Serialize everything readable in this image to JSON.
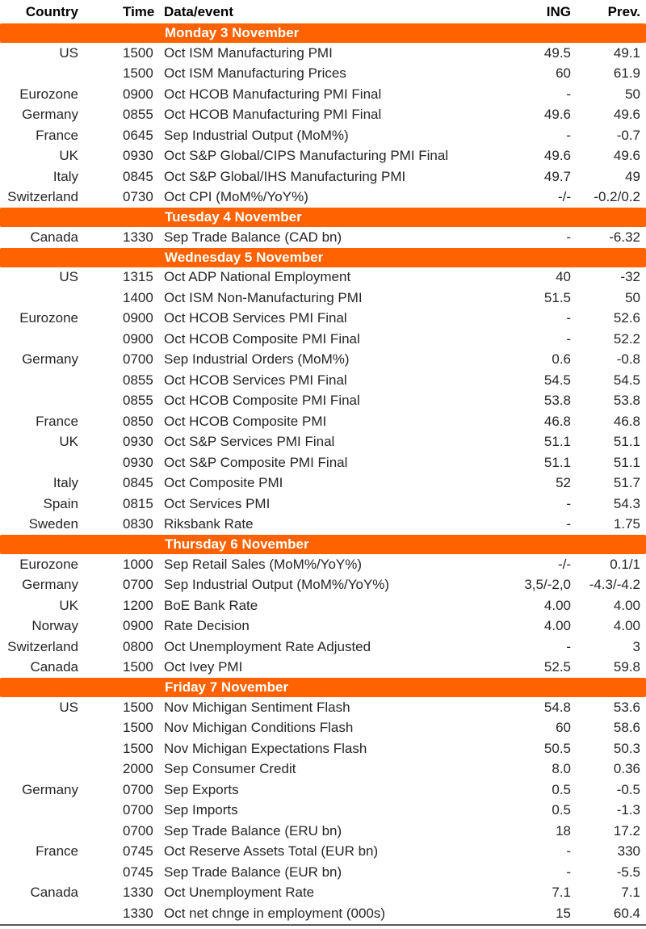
{
  "colors": {
    "band_orange": "#FF6200",
    "band_text": "#ffffff",
    "body_text": "#262626",
    "bottom_rule": "#595959"
  },
  "table": {
    "headers": {
      "country": "Country",
      "time": "Time",
      "event": "Data/event",
      "ing": "ING",
      "prev": "Prev."
    },
    "sections": [
      {
        "day": "Monday 3 November",
        "rows": [
          {
            "country": "US",
            "time": "1500",
            "event": "Oct ISM Manufacturing PMI",
            "ing": "49.5",
            "prev": "49.1"
          },
          {
            "country": "",
            "time": "1500",
            "event": "Oct ISM Manufacturing Prices",
            "ing": "60",
            "prev": "61.9"
          },
          {
            "country": "Eurozone",
            "time": "0900",
            "event": "Oct HCOB Manufacturing PMI Final",
            "ing": "-",
            "prev": "50"
          },
          {
            "country": "Germany",
            "time": "0855",
            "event": "Oct HCOB Manufacturing PMI Final",
            "ing": "49.6",
            "prev": "49.6"
          },
          {
            "country": "France",
            "time": "0645",
            "event": "Sep Industrial Output (MoM%)",
            "ing": "-",
            "prev": "-0.7"
          },
          {
            "country": "UK",
            "time": "0930",
            "event": "Oct S&P Global/CIPS Manufacturing PMI Final",
            "ing": "49.6",
            "prev": "49.6"
          },
          {
            "country": "Italy",
            "time": "0845",
            "event": "Oct S&P Global/IHS Manufacturing PMI",
            "ing": "49.7",
            "prev": "49"
          },
          {
            "country": "Switzerland",
            "time": "0730",
            "event": "Oct CPI (MoM%/YoY%)",
            "ing": "-/-",
            "prev": "-0.2/0.2"
          }
        ]
      },
      {
        "day": "Tuesday 4 November",
        "rows": [
          {
            "country": "Canada",
            "time": "1330",
            "event": "Sep Trade Balance (CAD bn)",
            "ing": "-",
            "prev": "-6.32"
          }
        ]
      },
      {
        "day": "Wednesday 5 November",
        "rows": [
          {
            "country": "US",
            "time": "1315",
            "event": "Oct ADP National Employment",
            "ing": "40",
            "prev": "-32"
          },
          {
            "country": "",
            "time": "1400",
            "event": "Oct ISM Non-Manufacturing PMI",
            "ing": "51.5",
            "prev": "50"
          },
          {
            "country": "Eurozone",
            "time": "0900",
            "event": "Oct HCOB Services PMI Final",
            "ing": "-",
            "prev": "52.6"
          },
          {
            "country": "",
            "time": "0900",
            "event": "Oct HCOB Composite PMI Final",
            "ing": "-",
            "prev": "52.2"
          },
          {
            "country": "Germany",
            "time": "0700",
            "event": "Sep Industrial Orders (MoM%)",
            "ing": "0.6",
            "prev": "-0.8"
          },
          {
            "country": "",
            "time": "0855",
            "event": "Oct HCOB Services PMI Final",
            "ing": "54.5",
            "prev": "54.5"
          },
          {
            "country": "",
            "time": "0855",
            "event": "Oct HCOB Composite PMI Final",
            "ing": "53.8",
            "prev": "53.8"
          },
          {
            "country": "France",
            "time": "0850",
            "event": "Oct HCOB Composite PMI",
            "ing": "46.8",
            "prev": "46.8"
          },
          {
            "country": "UK",
            "time": "0930",
            "event": "Oct S&P Services PMI Final",
            "ing": "51.1",
            "prev": "51.1"
          },
          {
            "country": "",
            "time": "0930",
            "event": "Oct S&P Composite PMI Final",
            "ing": "51.1",
            "prev": "51.1"
          },
          {
            "country": "Italy",
            "time": "0845",
            "event": "Oct Composite PMI",
            "ing": "52",
            "prev": "51.7"
          },
          {
            "country": "Spain",
            "time": "0815",
            "event": "Oct Services PMI",
            "ing": "-",
            "prev": "54.3"
          },
          {
            "country": "Sweden",
            "time": "0830",
            "event": "Riksbank Rate",
            "ing": "-",
            "prev": "1.75"
          }
        ]
      },
      {
        "day": "Thursday 6 November",
        "rows": [
          {
            "country": "Eurozone",
            "time": "1000",
            "event": "Sep Retail Sales (MoM%/YoY%)",
            "ing": "-/-",
            "prev": "0.1/1"
          },
          {
            "country": "Germany",
            "time": "0700",
            "event": "Sep Industrial Output (MoM%/YoY%)",
            "ing": "3,5/-2,0",
            "prev": "-4.3/-4.2"
          },
          {
            "country": "UK",
            "time": "1200",
            "event": "BoE Bank Rate",
            "ing": "4.00",
            "prev": "4.00"
          },
          {
            "country": "Norway",
            "time": "0900",
            "event": "Rate Decision",
            "ing": "4.00",
            "prev": "4.00"
          },
          {
            "country": "Switzerland",
            "time": "0800",
            "event": "Oct Unemployment Rate Adjusted",
            "ing": "-",
            "prev": "3"
          },
          {
            "country": "Canada",
            "time": "1500",
            "event": "Oct Ivey PMI",
            "ing": "52.5",
            "prev": "59.8"
          }
        ]
      },
      {
        "day": "Friday 7 November",
        "rows": [
          {
            "country": "US",
            "time": "1500",
            "event": "Nov Michigan Sentiment Flash",
            "ing": "54.8",
            "prev": "53.6"
          },
          {
            "country": "",
            "time": "1500",
            "event": "Nov Michigan Conditions Flash",
            "ing": "60",
            "prev": "58.6"
          },
          {
            "country": "",
            "time": "1500",
            "event": "Nov Michigan Expectations Flash",
            "ing": "50.5",
            "prev": "50.3"
          },
          {
            "country": "",
            "time": "2000",
            "event": "Sep Consumer Credit",
            "ing": "8.0",
            "prev": "0.36"
          },
          {
            "country": "Germany",
            "time": "0700",
            "event": "Sep Exports",
            "ing": "0.5",
            "prev": "-0.5"
          },
          {
            "country": "",
            "time": "0700",
            "event": "Sep Imports",
            "ing": "0.5",
            "prev": "-1.3"
          },
          {
            "country": "",
            "time": "0700",
            "event": "Sep Trade Balance (ERU bn)",
            "ing": "18",
            "prev": "17.2"
          },
          {
            "country": "France",
            "time": "0745",
            "event": "Oct Reserve Assets Total (EUR bn)",
            "ing": "-",
            "prev": "330"
          },
          {
            "country": "",
            "time": "0745",
            "event": "Sep Trade Balance (EUR bn)",
            "ing": "-",
            "prev": "-5.5"
          },
          {
            "country": "Canada",
            "time": "1330",
            "event": "Oct Unemployment Rate",
            "ing": "7.1",
            "prev": "7.1"
          },
          {
            "country": "",
            "time": "1330",
            "event": "Oct net chnge in employment (000s)",
            "ing": "15",
            "prev": "60.4"
          }
        ]
      }
    ]
  }
}
